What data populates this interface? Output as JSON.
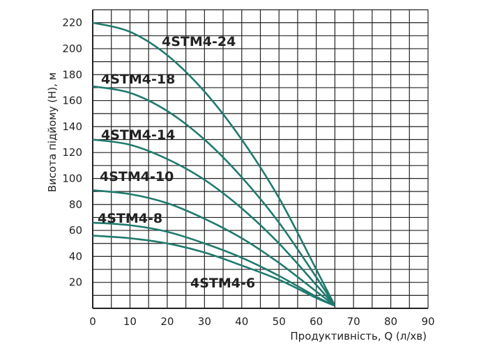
{
  "chart_data": {
    "type": "line",
    "title": "",
    "xlabel": "Продуктивність, Q (л/хв)",
    "ylabel": "Висота підйому (H), м",
    "xlim": [
      0,
      90
    ],
    "ylim": [
      0,
      230
    ],
    "grid": true,
    "x_ticks": [
      "0",
      "10",
      "20",
      "30",
      "40",
      "50",
      "60",
      "70",
      "80",
      "90"
    ],
    "y_ticks": [
      "20",
      "40",
      "60",
      "80",
      "100",
      "120",
      "140",
      "160",
      "180",
      "200",
      "220"
    ],
    "x": [
      0,
      10,
      20,
      30,
      40,
      50,
      60,
      65
    ],
    "color": "#1f7a6e",
    "series": [
      {
        "name": "4STM4-24",
        "values": [
          220,
          213,
          195,
          167,
          130,
          85,
          30,
          2
        ]
      },
      {
        "name": "4STM4-18",
        "values": [
          171,
          166,
          152,
          130,
          101,
          66,
          24,
          2
        ]
      },
      {
        "name": "4STM4-14",
        "values": [
          130,
          126,
          115,
          99,
          77,
          50,
          18,
          2
        ]
      },
      {
        "name": "4STM4-10",
        "values": [
          91,
          88,
          81,
          69,
          54,
          35,
          13,
          2
        ]
      },
      {
        "name": "4STM4-8",
        "values": [
          66,
          64,
          59,
          50,
          39,
          25,
          9,
          2
        ]
      },
      {
        "name": "4STM4-6",
        "values": [
          56,
          54,
          50,
          43,
          33,
          22,
          8,
          2
        ]
      }
    ]
  }
}
